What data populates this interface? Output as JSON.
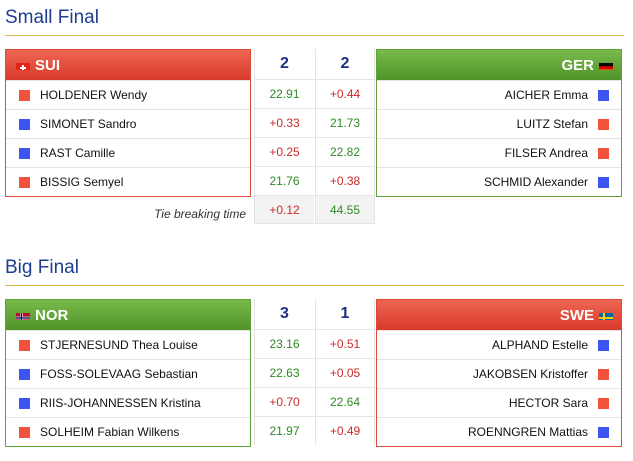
{
  "sections": [
    {
      "title": "Small Final",
      "left": {
        "code": "SUI",
        "header_color": "red",
        "flag_icon": "switzerland-flag-icon",
        "players": [
          {
            "name": "HOLDENER Wendy",
            "color": "red"
          },
          {
            "name": "SIMONET Sandro",
            "color": "blue"
          },
          {
            "name": "RAST Camille",
            "color": "blue"
          },
          {
            "name": "BISSIG Semyel",
            "color": "red"
          }
        ]
      },
      "right": {
        "code": "GER",
        "header_color": "green",
        "flag_icon": "germany-flag-icon",
        "players": [
          {
            "name": "AICHER Emma",
            "color": "blue"
          },
          {
            "name": "LUITZ Stefan",
            "color": "red"
          },
          {
            "name": "FILSER Andrea",
            "color": "red"
          },
          {
            "name": "SCHMID Alexander",
            "color": "blue"
          }
        ]
      },
      "score_left": "2",
      "score_right": "2",
      "times": [
        {
          "left": "22.91",
          "right": "+0.44"
        },
        {
          "left": "+0.33",
          "right": "21.73"
        },
        {
          "left": "+0.25",
          "right": "22.82"
        },
        {
          "left": "21.76",
          "right": "+0.38"
        }
      ],
      "tie_break": {
        "label": "Tie breaking time",
        "left": "+0.12",
        "right": "44.55"
      }
    },
    {
      "title": "Big Final",
      "left": {
        "code": "NOR",
        "header_color": "green",
        "flag_icon": "norway-flag-icon",
        "players": [
          {
            "name": "STJERNESUND Thea Louise",
            "color": "red"
          },
          {
            "name": "FOSS-SOLEVAAG Sebastian",
            "color": "blue"
          },
          {
            "name": "RIIS-JOHANNESSEN Kristina",
            "color": "blue"
          },
          {
            "name": "SOLHEIM Fabian Wilkens",
            "color": "red"
          }
        ]
      },
      "right": {
        "code": "SWE",
        "header_color": "red",
        "flag_icon": "sweden-flag-icon",
        "players": [
          {
            "name": "ALPHAND Estelle",
            "color": "blue"
          },
          {
            "name": "JAKOBSEN Kristoffer",
            "color": "red"
          },
          {
            "name": "HECTOR Sara",
            "color": "red"
          },
          {
            "name": "ROENNGREN Mattias",
            "color": "blue"
          }
        ]
      },
      "score_left": "3",
      "score_right": "1",
      "times": [
        {
          "left": "23.16",
          "right": "+0.51"
        },
        {
          "left": "22.63",
          "right": "+0.05"
        },
        {
          "left": "+0.70",
          "right": "22.64"
        },
        {
          "left": "21.97",
          "right": "+0.49"
        }
      ]
    }
  ],
  "colors": {
    "red_header": "#d8392a",
    "green_header": "#4f9329",
    "title_blue": "#1e3f8f",
    "gold_rule": "#d7b94a",
    "red_marker": "#f0523c",
    "blue_marker": "#3c55f0",
    "positive_time": "#2e8b25",
    "negative_time": "#cc2b2b"
  }
}
